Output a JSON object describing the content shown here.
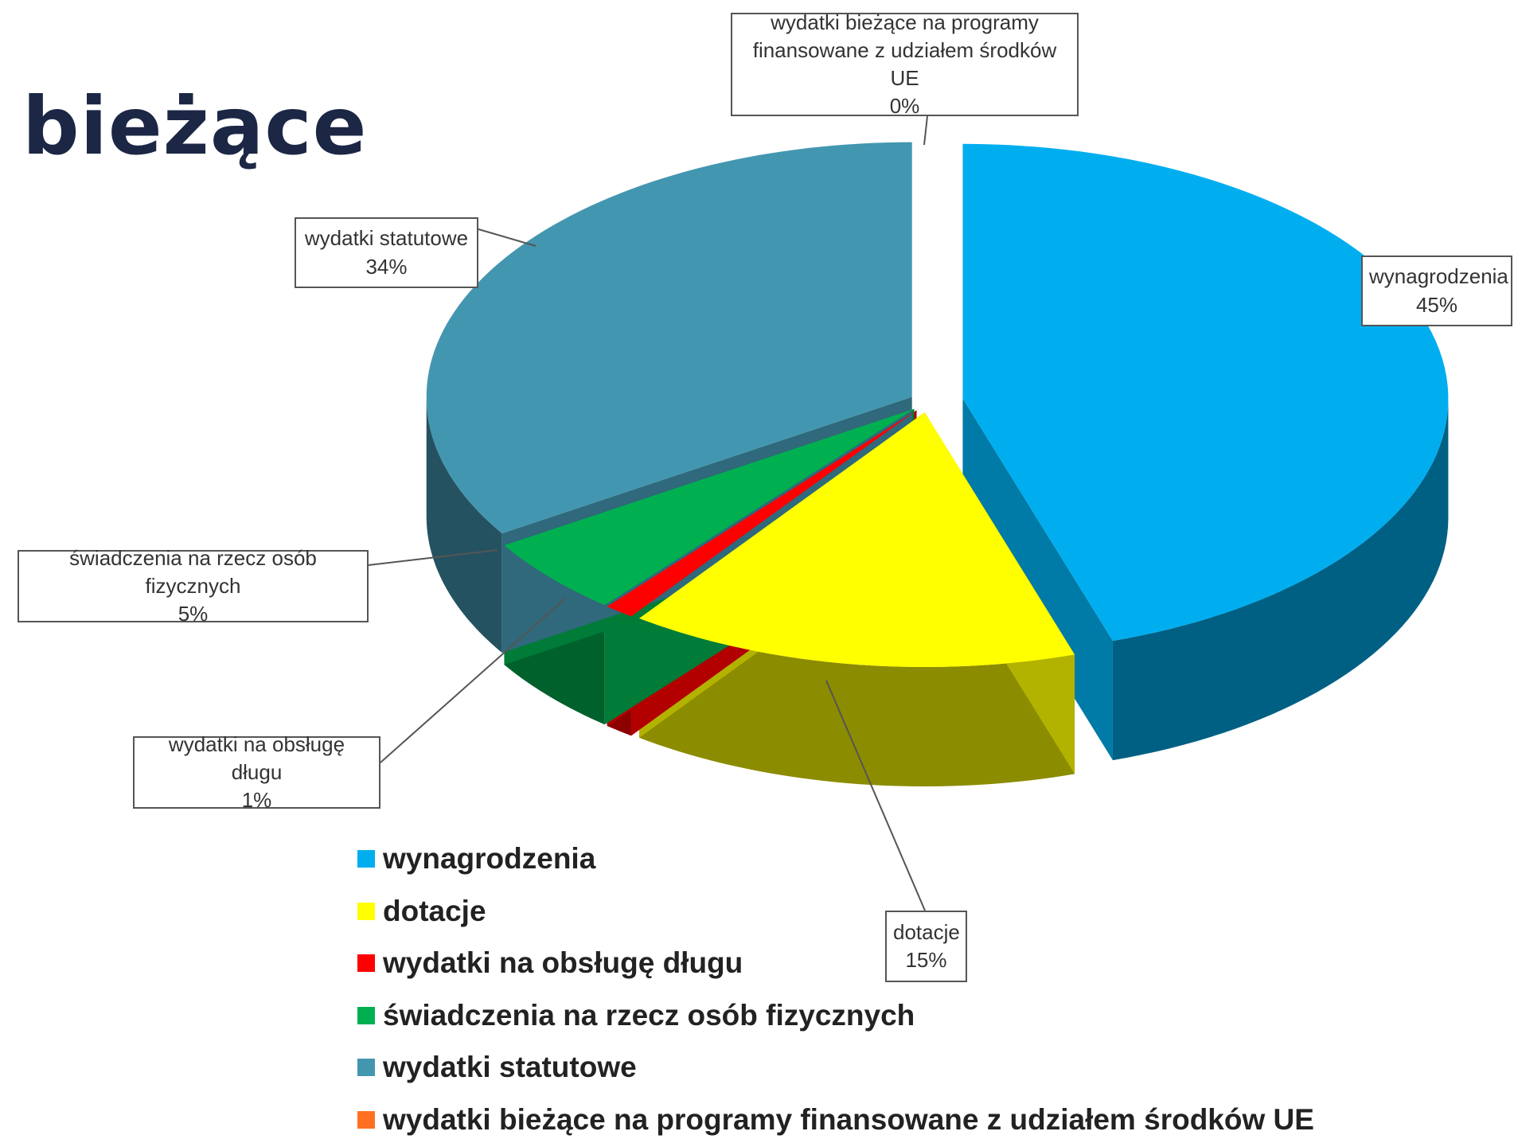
{
  "chart_data": {
    "type": "pie",
    "title": "bieżące",
    "categories": [
      "wynagrodzenia",
      "dotacje",
      "wydatki na obsługę długu",
      "świadczenia na rzecz osób fizycznych",
      "wydatki statutowe",
      "wydatki bieżące na programy finansowane z udziałem środków UE"
    ],
    "values": [
      45,
      15,
      1,
      5,
      34,
      0
    ],
    "value_labels": [
      "45%",
      "15%",
      "1%",
      "5%",
      "34%",
      "0%"
    ],
    "colors": [
      "#00aeef",
      "#ffff00",
      "#ff0000",
      "#00b050",
      "#4396b0",
      "#ff7020"
    ]
  }
}
